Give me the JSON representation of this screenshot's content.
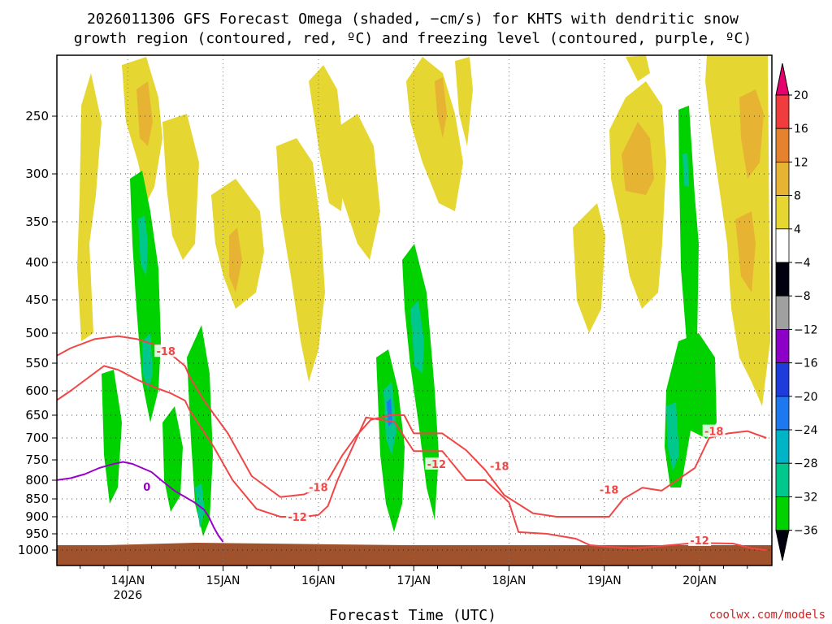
{
  "chart_data": {
    "type": "heatmap",
    "title_line1": "2026011306 GFS Forecast Omega (shaded, −cm/s) for KHTS with dendritic snow",
    "title_line2": "growth region (contoured, red, ºC) and freezing level (contoured, purple, ºC)",
    "xlabel": "Forecast Time (UTC)",
    "ylabel": "",
    "credit": "coolwx.com/models",
    "y_ticks": [
      "250",
      "300",
      "350",
      "400",
      "450",
      "500",
      "550",
      "600",
      "650",
      "700",
      "750",
      "800",
      "850",
      "900",
      "950",
      "1000"
    ],
    "y_tick_values": [
      250,
      300,
      350,
      400,
      450,
      500,
      550,
      600,
      650,
      700,
      750,
      800,
      850,
      900,
      950,
      1000
    ],
    "x_ticks": [
      "14JAN",
      "15JAN",
      "16JAN",
      "17JAN",
      "18JAN",
      "19JAN",
      "20JAN"
    ],
    "x_tick_days": [
      1,
      2,
      3,
      4,
      5,
      6,
      7
    ],
    "x_year_label": "2026",
    "x_range_days": [
      0.25,
      7.7
    ],
    "colorbar": {
      "levels": [
        "20",
        "16",
        "12",
        "8",
        "4",
        "−4",
        "−8",
        "−12",
        "−16",
        "−20",
        "−24",
        "−28",
        "−32",
        "−36"
      ],
      "colors": [
        "#ffffff",
        "#ffff33",
        "#e6d632",
        "#e6b432",
        "#e6822d",
        "#f03c3c",
        "#e6006e",
        "#00000f",
        "#a0a0a0",
        "#8c00c8",
        "#1e3cdc",
        "#1e78f0",
        "#00b4c8",
        "#00c88c",
        "#00d200"
      ]
    },
    "series": [
      {
        "name": "dendritic growth region −12 °C",
        "color": "#f04646",
        "x": [
          0.25,
          0.4,
          0.75,
          0.9,
          1.1,
          1.3,
          1.45,
          1.6,
          1.65,
          1.9,
          2.1,
          2.35,
          2.6,
          2.85,
          3.0,
          3.1,
          3.2,
          3.5,
          3.8,
          4.0,
          4.3,
          4.55,
          4.75,
          5.0,
          5.1,
          5.4,
          5.7,
          5.85,
          6.05,
          6.3,
          6.5,
          6.95,
          7.35,
          7.55,
          7.7
        ],
        "y": [
          620,
          600,
          555,
          562,
          580,
          595,
          605,
          620,
          640,
          720,
          800,
          878,
          900,
          900,
          895,
          870,
          800,
          655,
          665,
          730,
          730,
          800,
          800,
          860,
          945,
          950,
          965,
          985,
          990,
          995,
          990,
          978,
          980,
          995,
          1000
        ],
        "labels": [
          {
            "text": "-12",
            "x": 2.78,
            "y": 900
          },
          {
            "text": "-12",
            "x": 4.24,
            "y": 760
          },
          {
            "text": "-12",
            "x": 7.0,
            "y": 970
          }
        ]
      },
      {
        "name": "dendritic growth region −18 °C",
        "color": "#f04646",
        "x": [
          0.25,
          0.4,
          0.65,
          0.9,
          1.1,
          1.3,
          1.45,
          1.6,
          1.65,
          1.8,
          2.05,
          2.3,
          2.6,
          2.85,
          3.0,
          3.1,
          3.25,
          3.4,
          3.55,
          3.75,
          3.9,
          4.0,
          4.3,
          4.55,
          4.75,
          4.95,
          5.25,
          5.5,
          5.75,
          6.05,
          6.2,
          6.4,
          6.6,
          6.95,
          7.1,
          7.3,
          7.5,
          7.7
        ],
        "y": [
          538,
          525,
          510,
          505,
          510,
          520,
          535,
          555,
          575,
          620,
          690,
          790,
          845,
          838,
          820,
          800,
          740,
          695,
          660,
          650,
          650,
          690,
          690,
          728,
          775,
          840,
          890,
          900,
          900,
          900,
          850,
          820,
          828,
          770,
          700,
          690,
          685,
          700
        ],
        "labels": [
          {
            "text": "-18",
            "x": 1.4,
            "y": 530
          },
          {
            "text": "-18",
            "x": 3.0,
            "y": 818
          },
          {
            "text": "-18",
            "x": 4.9,
            "y": 765
          },
          {
            "text": "-18",
            "x": 6.05,
            "y": 825
          },
          {
            "text": "-18",
            "x": 7.15,
            "y": 685
          }
        ]
      },
      {
        "name": "freezing level 0 °C",
        "color": "#9b00c8",
        "x": [
          0.25,
          0.4,
          0.55,
          0.7,
          0.85,
          0.95,
          1.05,
          1.15,
          1.25,
          1.35,
          1.5,
          1.7,
          1.8,
          1.85,
          1.9,
          1.95,
          2.0
        ],
        "y": [
          800,
          795,
          785,
          770,
          760,
          755,
          760,
          770,
          780,
          800,
          830,
          860,
          880,
          900,
          930,
          955,
          975
        ],
        "labels": [
          {
            "text": "0",
            "x": 1.2,
            "y": 817
          }
        ]
      }
    ]
  }
}
